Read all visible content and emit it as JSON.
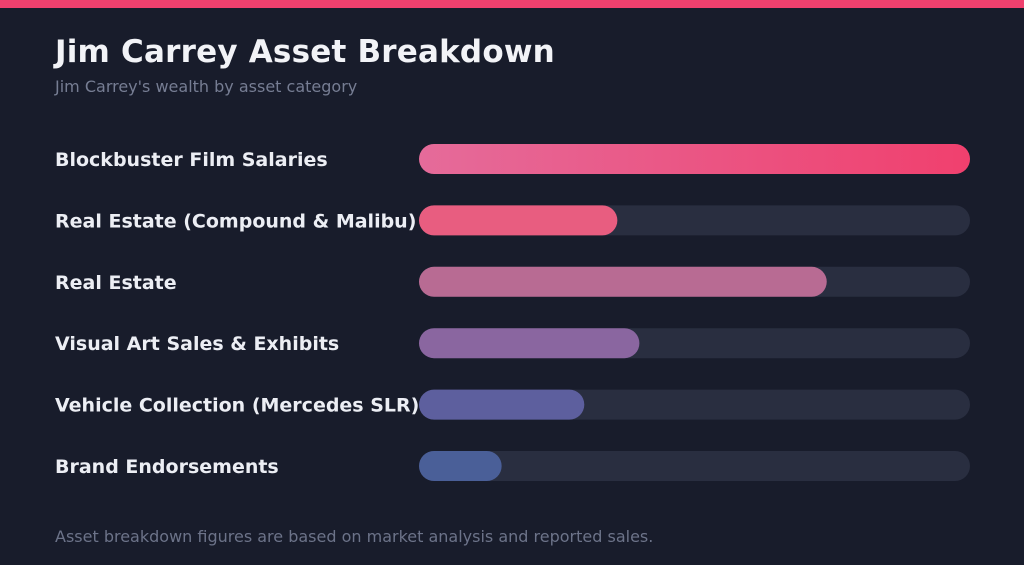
{
  "chart_data": {
    "type": "bar",
    "orientation": "horizontal",
    "title": "Jim Carrey Asset Breakdown",
    "subtitle": "Jim Carrey's wealth by asset category",
    "categories": [
      "Blockbuster Film Salaries",
      "Real Estate (Compound & Malibu)",
      "Real Estate",
      "Visual Art Sales & Exhibits",
      "Vehicle Collection (Mercedes SLR)",
      "Brand Endorsements"
    ],
    "values": [
      100,
      36,
      74,
      40,
      30,
      15
    ],
    "value_scale": "relative share of largest category (%)",
    "xlim": [
      0,
      100
    ],
    "grid": false,
    "legend": "none",
    "bar_colors": [
      "#f0406e",
      "#e85d80",
      "#b86b93",
      "#8a66a0",
      "#5d5f9e",
      "#4a5f98"
    ],
    "bar_gradient_start": "#e56b9a",
    "track_color": "#292e40",
    "footnote": "Asset breakdown figures are based on market analysis and reported sales."
  }
}
